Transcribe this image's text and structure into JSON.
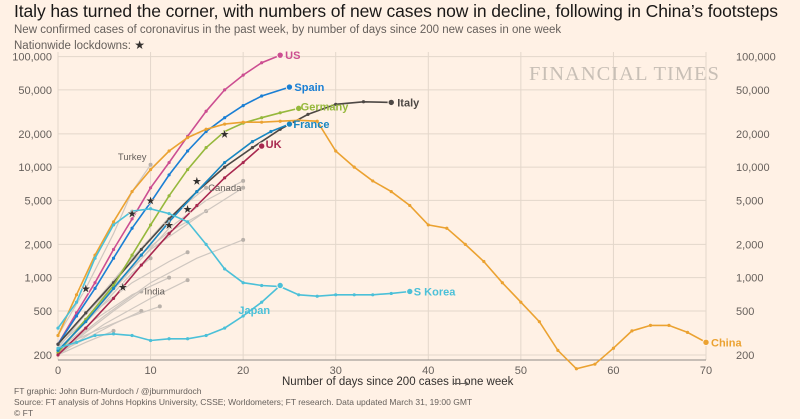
{
  "title": "Italy has turned the corner, with numbers of new cases now in decline, following in China’s footsteps",
  "subtitle": "New confirmed cases of coronavirus in the past week, by number of days since 200 new cases in one week",
  "lockdown_label": "Nationwide lockdowns:",
  "lockdown_symbol": "★",
  "watermark": "FINANCIAL TIMES",
  "xlabel": "Number of days since 200 cases in one week",
  "footnotes": [
    "FT graphic: John Burn-Murdoch / @jburnmurdoch",
    "Source: FT analysis of Johns Hopkins University, CSSE; Worldometers; FT research. Data updated March 31, 19:00 GMT",
    "© FT"
  ],
  "chart_data": {
    "type": "line",
    "y_scale": "log",
    "xlim": [
      0,
      72
    ],
    "ylim": [
      180,
      110000
    ],
    "xticks": [
      0,
      10,
      20,
      30,
      40,
      50,
      60,
      70
    ],
    "xtick_labels": [
      "0",
      "10",
      "20",
      "30",
      "40",
      "50",
      "60",
      "70"
    ],
    "yticks": [
      200,
      500,
      1000,
      2000,
      5000,
      10000,
      20000,
      50000,
      100000
    ],
    "ytick_labels": [
      "200",
      "500",
      "1,000",
      "2,000",
      "5,000",
      "10,000",
      "20,000",
      "50,000",
      "100,000"
    ],
    "grid": true,
    "series": [
      {
        "name": "US",
        "color": "#cc4e91",
        "label_at": "end",
        "x": [
          0,
          2,
          4,
          6,
          8,
          10,
          12,
          14,
          16,
          18,
          20,
          22,
          24
        ],
        "y": [
          250,
          480,
          900,
          1800,
          3400,
          6500,
          11000,
          19000,
          32000,
          50000,
          68000,
          88000,
          103000
        ]
      },
      {
        "name": "Spain",
        "color": "#1a7fd4",
        "label_at": "end",
        "x": [
          0,
          2,
          4,
          6,
          8,
          10,
          12,
          14,
          16,
          18,
          20,
          22,
          25
        ],
        "y": [
          250,
          450,
          800,
          1500,
          2800,
          4800,
          8500,
          14000,
          21000,
          28000,
          36000,
          44000,
          53000
        ]
      },
      {
        "name": "Italy",
        "color": "#4d4845",
        "label_at": "end",
        "x": [
          0,
          3,
          6,
          9,
          12,
          15,
          18,
          21,
          24,
          27,
          30,
          33,
          36
        ],
        "y": [
          250,
          480,
          900,
          1800,
          3400,
          6000,
          10000,
          15000,
          22000,
          30000,
          37000,
          39000,
          38500
        ]
      },
      {
        "name": "Germany",
        "color": "#96b83c",
        "label_at": "end",
        "x": [
          0,
          3,
          6,
          8,
          10,
          12,
          14,
          16,
          18,
          20,
          22,
          24,
          26
        ],
        "y": [
          210,
          420,
          850,
          1600,
          3000,
          5500,
          9500,
          15000,
          21000,
          25000,
          28000,
          31000,
          34000
        ]
      },
      {
        "name": "France",
        "color": "#1887c2",
        "label_at": "end",
        "x": [
          0,
          3,
          6,
          9,
          12,
          15,
          18,
          21,
          23,
          25
        ],
        "y": [
          220,
          400,
          800,
          1600,
          3200,
          6000,
          11000,
          17000,
          21000,
          24500
        ]
      },
      {
        "name": "UK",
        "color": "#a8284f",
        "label_at": "end",
        "x": [
          0,
          3,
          6,
          9,
          12,
          15,
          18,
          20,
          22
        ],
        "y": [
          200,
          350,
          650,
          1300,
          2500,
          4500,
          8000,
          11000,
          15500
        ]
      },
      {
        "name": "China",
        "color": "#eba231",
        "label_at": "end",
        "x": [
          0,
          2,
          4,
          6,
          8,
          10,
          12,
          14,
          16,
          18,
          20,
          22,
          24,
          26,
          28,
          30,
          32,
          34,
          36,
          38,
          40,
          42,
          44,
          46,
          48,
          50,
          52,
          54,
          56,
          58,
          60,
          62,
          64,
          66,
          68,
          70
        ],
        "y": [
          300,
          700,
          1600,
          3200,
          6000,
          9500,
          14000,
          18500,
          22000,
          24500,
          25500,
          25500,
          26000,
          26500,
          26000,
          14000,
          10000,
          7500,
          6000,
          4500,
          3000,
          2800,
          2000,
          1400,
          900,
          600,
          400,
          220,
          150,
          165,
          230,
          330,
          370,
          370,
          320,
          260
        ]
      },
      {
        "name": "S Korea",
        "color": "#4bc0d8",
        "label_at": "end",
        "x": [
          0,
          2,
          4,
          6,
          8,
          10,
          12,
          14,
          16,
          18,
          20,
          22,
          24,
          26,
          28,
          30,
          32,
          34,
          36,
          38
        ],
        "y": [
          350,
          600,
          1500,
          3000,
          4000,
          4200,
          3800,
          3200,
          2000,
          1200,
          900,
          850,
          830,
          700,
          680,
          700,
          700,
          700,
          720,
          750
        ]
      },
      {
        "name": "Japan",
        "color": "#4bc0d8",
        "label_at": "none",
        "x": [
          0,
          2,
          4,
          6,
          8,
          10,
          12,
          14,
          16,
          18,
          20,
          22,
          24
        ],
        "y": [
          230,
          260,
          300,
          310,
          300,
          270,
          280,
          280,
          300,
          350,
          450,
          600,
          850
        ]
      }
    ],
    "background_series": [
      {
        "name": "Turkey",
        "label_at": "end",
        "x": [
          0,
          3,
          6,
          8,
          10
        ],
        "y": [
          300,
          800,
          2500,
          6000,
          10500
        ]
      },
      {
        "name": "Canada",
        "label_at": "end",
        "x": [
          0,
          4,
          8,
          12,
          16
        ],
        "y": [
          250,
          600,
          1500,
          3500,
          6500
        ]
      },
      {
        "name": "India",
        "label_at": "end",
        "x": [
          0,
          3,
          6,
          9
        ],
        "y": [
          200,
          320,
          500,
          750
        ]
      },
      {
        "x": [
          0,
          4,
          8,
          12,
          16,
          20
        ],
        "y": [
          220,
          500,
          1200,
          2800,
          5000,
          7500
        ]
      },
      {
        "x": [
          0,
          4,
          8,
          12,
          16
        ],
        "y": [
          230,
          600,
          1400,
          2600,
          4000
        ]
      },
      {
        "x": [
          0,
          5,
          10,
          15,
          20
        ],
        "y": [
          210,
          450,
          900,
          1500,
          2200
        ]
      },
      {
        "x": [
          0,
          4,
          8,
          12,
          14
        ],
        "y": [
          240,
          500,
          900,
          1400,
          1700
        ]
      },
      {
        "x": [
          0,
          5,
          10,
          14
        ],
        "y": [
          200,
          380,
          650,
          950
        ]
      },
      {
        "x": [
          0,
          4,
          8,
          12
        ],
        "y": [
          220,
          420,
          700,
          1000
        ]
      },
      {
        "x": [
          0,
          3,
          6,
          9
        ],
        "y": [
          210,
          280,
          380,
          500
        ]
      },
      {
        "x": [
          0,
          4,
          8,
          11
        ],
        "y": [
          230,
          330,
          450,
          550
        ]
      },
      {
        "x": [
          0,
          5,
          10,
          16,
          20
        ],
        "y": [
          250,
          700,
          1800,
          4000,
          6500
        ]
      },
      {
        "x": [
          0,
          3,
          6
        ],
        "y": [
          200,
          260,
          330
        ]
      },
      {
        "x": [
          0,
          4,
          8,
          10
        ],
        "y": [
          220,
          480,
          1100,
          1500
        ]
      }
    ],
    "lockdowns": [
      {
        "x": 3,
        "y": 800
      },
      {
        "x": 7,
        "y": 820
      },
      {
        "x": 8,
        "y": 3800
      },
      {
        "x": 10,
        "y": 5000
      },
      {
        "x": 12,
        "y": 3000
      },
      {
        "x": 14,
        "y": 4200
      },
      {
        "x": 15,
        "y": 7500
      },
      {
        "x": 18,
        "y": 20000
      }
    ]
  }
}
